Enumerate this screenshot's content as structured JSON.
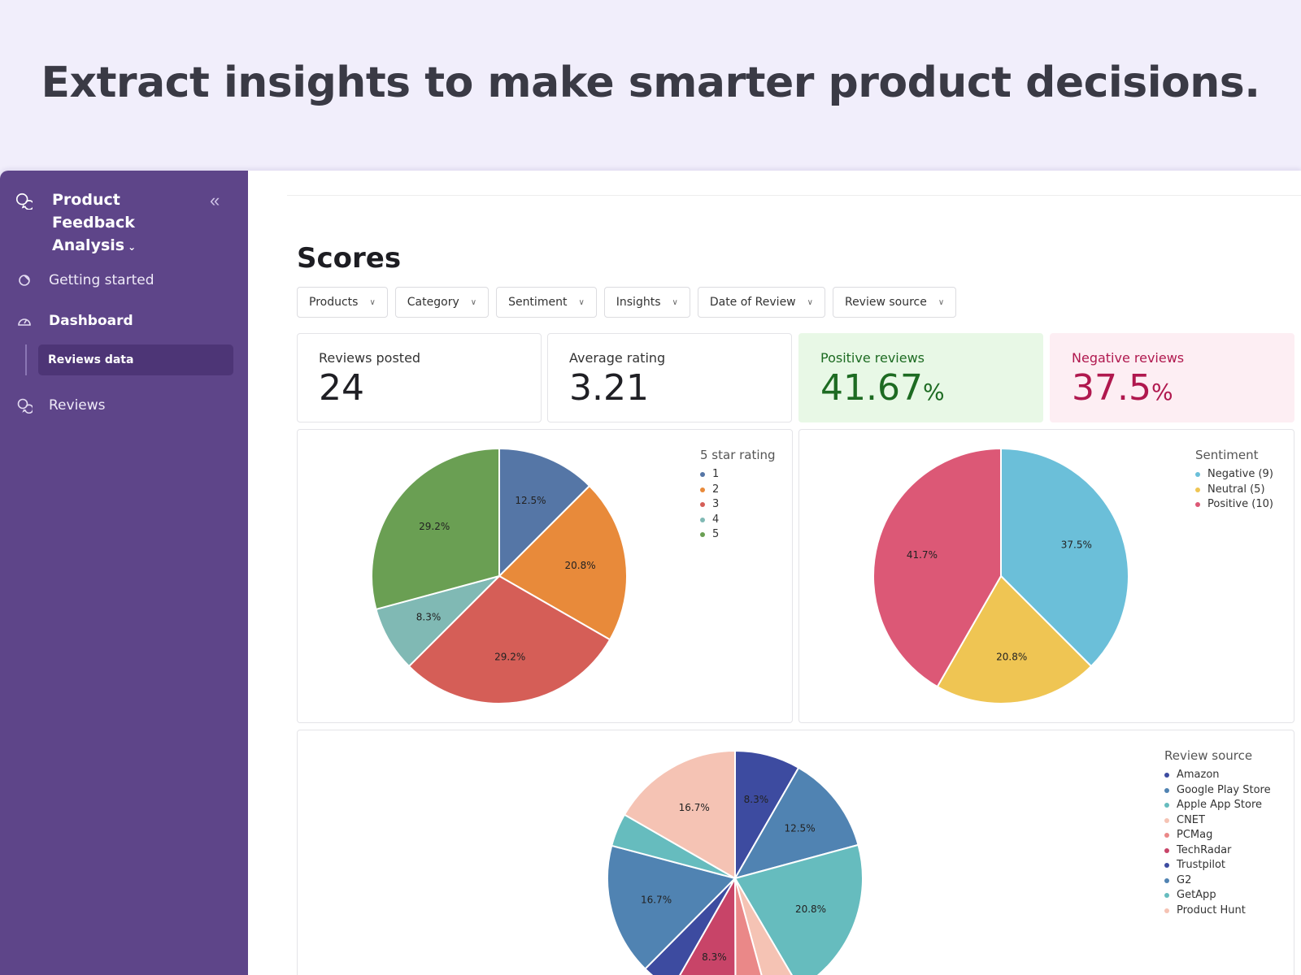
{
  "headline": "Extract insights to make smarter product decisions.",
  "sidebar": {
    "app_title_line1": "Product Feedback",
    "app_title_line2": "Analysis",
    "collapse_glyph": "«",
    "items": [
      {
        "label": "Getting started"
      },
      {
        "label": "Dashboard"
      },
      {
        "label": "Reviews data"
      },
      {
        "label": "Reviews"
      }
    ]
  },
  "main": {
    "title": "Scores",
    "filters": [
      "Products",
      "Category",
      "Sentiment",
      "Insights",
      "Date of Review",
      "Review source"
    ],
    "stats": [
      {
        "label": "Reviews posted",
        "value": "24",
        "unit": ""
      },
      {
        "label": "Average rating",
        "value": "3.21",
        "unit": ""
      },
      {
        "label": "Positive reviews",
        "value": "41.67",
        "unit": "%"
      },
      {
        "label": "Negative reviews",
        "value": "37.5",
        "unit": "%"
      }
    ]
  },
  "chart_data": [
    {
      "type": "pie",
      "title": "5 star rating",
      "legend_position": "top-right",
      "slices": [
        {
          "name": "1",
          "value": 12.5,
          "label": "12.5%",
          "color": "#5576a6"
        },
        {
          "name": "2",
          "value": 20.8,
          "label": "20.8%",
          "color": "#e88a3a"
        },
        {
          "name": "3",
          "value": 29.2,
          "label": "29.2%",
          "color": "#d55e57"
        },
        {
          "name": "4",
          "value": 8.3,
          "label": "8.3%",
          "color": "#80b9b4"
        },
        {
          "name": "5",
          "value": 29.2,
          "label": "29.2%",
          "color": "#6a9f53"
        }
      ]
    },
    {
      "type": "pie",
      "title": "Sentiment",
      "legend_position": "top-right",
      "slices": [
        {
          "name": "Negative (9)",
          "value": 37.5,
          "label": "37.5%",
          "color": "#6bbfd9"
        },
        {
          "name": "Neutral (5)",
          "value": 20.8,
          "label": "20.8%",
          "color": "#efc553"
        },
        {
          "name": "Positive (10)",
          "value": 41.7,
          "label": "41.7%",
          "color": "#dc5876"
        }
      ]
    },
    {
      "type": "pie",
      "title": "Review source",
      "legend_position": "top-right",
      "slices": [
        {
          "name": "Amazon",
          "value": 8.3,
          "label": "8.3%",
          "color": "#3d4ba0"
        },
        {
          "name": "Google Play Store",
          "value": 12.5,
          "label": "12.5%",
          "color": "#5083b2"
        },
        {
          "name": "Apple App Store",
          "value": 20.8,
          "label": "20.8%",
          "color": "#66bcbe"
        },
        {
          "name": "CNET",
          "value": 4.2,
          "label": "",
          "color": "#f5c3b4"
        },
        {
          "name": "PCMag",
          "value": 4.2,
          "label": "",
          "color": "#ea8888"
        },
        {
          "name": "TechRadar",
          "value": 8.3,
          "label": "8.3%",
          "color": "#c84468"
        },
        {
          "name": "Trustpilot",
          "value": 4.2,
          "label": "",
          "color": "#3d4ba0"
        },
        {
          "name": "G2",
          "value": 16.7,
          "label": "16.7%",
          "color": "#5083b2"
        },
        {
          "name": "GetApp",
          "value": 4.2,
          "label": "",
          "color": "#66bcbe"
        },
        {
          "name": "Product Hunt",
          "value": 16.7,
          "label": "16.7%",
          "color": "#f5c3b4"
        }
      ]
    }
  ]
}
